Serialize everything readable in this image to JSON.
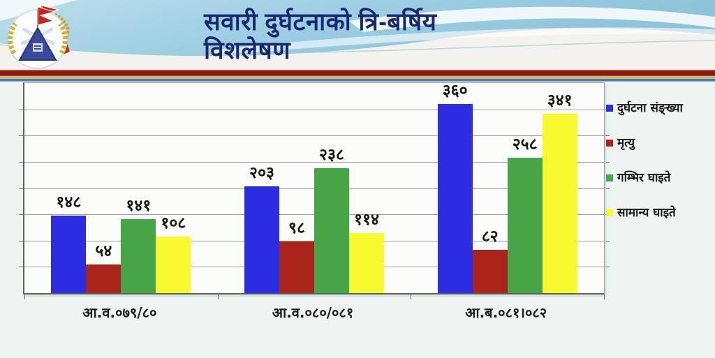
{
  "header": {
    "title_line1": "सवारी दुर्घटनाको त्रि-बर्षिय",
    "title_line2": "विशलेषण",
    "left_logo": "nepal-police-emblem",
    "right_logo": "nepal-traffic-police-emblem"
  },
  "chart_data": {
    "type": "bar",
    "title": "सवारी दुर्घटनाको त्रि-बर्षिय विशलेषण",
    "categories": [
      "आ.व.०७९/८०",
      "आ.व.०८०/०८१",
      "आ.ब.०८१।०८२"
    ],
    "series": [
      {
        "name": "दुर्घटना संङ्ख्या",
        "color": "#2c2ce2",
        "values": [
          148,
          203,
          360
        ],
        "value_labels": [
          "१४८",
          "२०३",
          "३६०"
        ]
      },
      {
        "name": "मृत्यु",
        "color": "#a9251b",
        "values": [
          54,
          98,
          82
        ],
        "value_labels": [
          "५४",
          "९८",
          "८२"
        ]
      },
      {
        "name": "गम्भिर घाइते",
        "color": "#47a447",
        "values": [
          141,
          238,
          258
        ],
        "value_labels": [
          "१४१",
          "२३८",
          "२५८"
        ]
      },
      {
        "name": "सामान्य घाइते",
        "color": "#f9f930",
        "values": [
          108,
          114,
          341
        ],
        "value_labels": [
          "१०८",
          "११४",
          "३४१"
        ]
      }
    ],
    "ylim": [
      0,
      400
    ],
    "gridline_step": 50,
    "grid": true,
    "legend_position": "right",
    "xlabel": "",
    "ylabel": ""
  },
  "colors": {
    "title_navy": "#16286e",
    "stripe_maroon": "#7c1c1c",
    "stripe_gold": "#ddb94a",
    "stripe_blue": "#4d7dad",
    "body_bg": "#eff3f1",
    "plot_bg": "#fcfcfa"
  }
}
